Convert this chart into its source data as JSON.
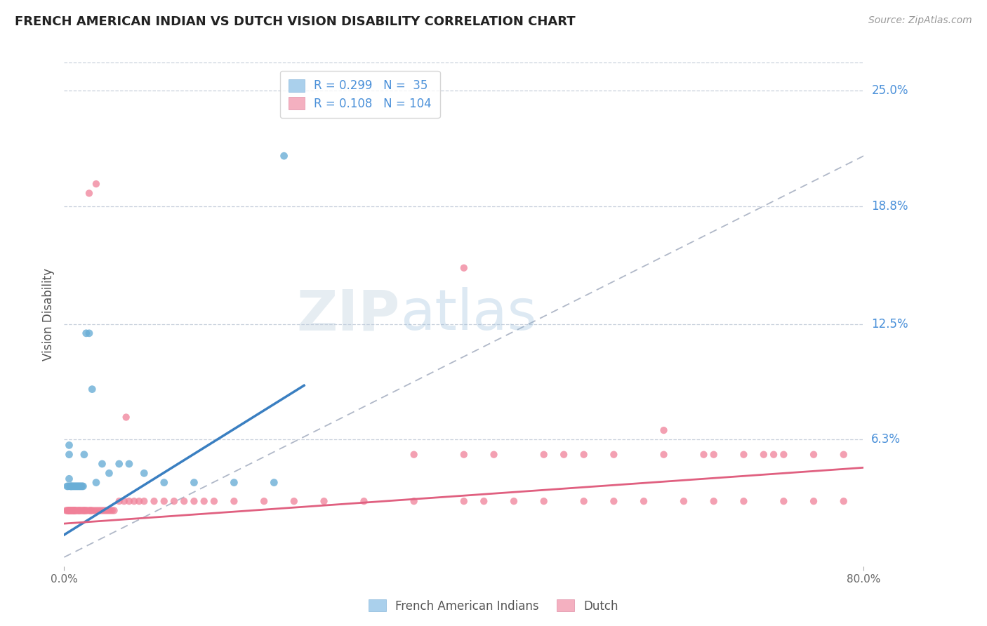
{
  "title": "FRENCH AMERICAN INDIAN VS DUTCH VISION DISABILITY CORRELATION CHART",
  "source": "Source: ZipAtlas.com",
  "ylabel": "Vision Disability",
  "ytick_labels": [
    "25.0%",
    "18.8%",
    "12.5%",
    "6.3%"
  ],
  "ytick_values": [
    0.25,
    0.188,
    0.125,
    0.063
  ],
  "xlim": [
    0.0,
    0.8
  ],
  "ylim": [
    -0.005,
    0.265
  ],
  "blue_scatter_color": "#6aaed6",
  "pink_scatter_color": "#f08098",
  "blue_line_color": "#3a7fc1",
  "pink_line_color": "#e06080",
  "trendline_color": "#b0b8c8",
  "watermark_color": "#ccddf0",
  "background_color": "#ffffff",
  "grid_color": "#c8d0dc",
  "title_color": "#222222",
  "right_label_color": "#4a90d9",
  "blue_line_x0": 0.0,
  "blue_line_y0": 0.012,
  "blue_line_x1": 0.24,
  "blue_line_y1": 0.092,
  "pink_line_x0": 0.0,
  "pink_line_y0": 0.018,
  "pink_line_x1": 0.8,
  "pink_line_y1": 0.048,
  "gray_line_x0": 0.0,
  "gray_line_y0": 0.0,
  "gray_line_x1": 0.8,
  "gray_line_y1": 0.215,
  "blue_x": [
    0.003,
    0.004,
    0.005,
    0.005,
    0.005,
    0.006,
    0.007,
    0.007,
    0.008,
    0.009,
    0.01,
    0.011,
    0.012,
    0.013,
    0.014,
    0.015,
    0.016,
    0.017,
    0.018,
    0.019,
    0.02,
    0.022,
    0.025,
    0.028,
    0.032,
    0.038,
    0.045,
    0.055,
    0.065,
    0.08,
    0.1,
    0.13,
    0.17,
    0.21,
    0.22
  ],
  "blue_y": [
    0.038,
    0.038,
    0.055,
    0.06,
    0.042,
    0.038,
    0.038,
    0.038,
    0.038,
    0.038,
    0.038,
    0.038,
    0.038,
    0.038,
    0.038,
    0.038,
    0.038,
    0.038,
    0.038,
    0.038,
    0.055,
    0.12,
    0.12,
    0.09,
    0.04,
    0.05,
    0.045,
    0.05,
    0.05,
    0.045,
    0.04,
    0.04,
    0.04,
    0.04,
    0.215
  ],
  "pink_x": [
    0.002,
    0.003,
    0.004,
    0.004,
    0.005,
    0.005,
    0.005,
    0.005,
    0.006,
    0.006,
    0.007,
    0.007,
    0.008,
    0.008,
    0.009,
    0.009,
    0.01,
    0.01,
    0.01,
    0.01,
    0.011,
    0.011,
    0.012,
    0.013,
    0.014,
    0.015,
    0.015,
    0.016,
    0.017,
    0.018,
    0.019,
    0.02,
    0.02,
    0.021,
    0.022,
    0.023,
    0.025,
    0.026,
    0.027,
    0.028,
    0.03,
    0.032,
    0.034,
    0.036,
    0.038,
    0.04,
    0.042,
    0.044,
    0.046,
    0.048,
    0.05,
    0.055,
    0.06,
    0.065,
    0.07,
    0.075,
    0.08,
    0.09,
    0.1,
    0.11,
    0.12,
    0.13,
    0.14,
    0.15,
    0.17,
    0.2,
    0.23,
    0.26,
    0.3,
    0.35,
    0.4,
    0.42,
    0.45,
    0.48,
    0.52,
    0.55,
    0.58,
    0.62,
    0.65,
    0.68,
    0.72,
    0.75,
    0.78,
    0.025,
    0.032,
    0.062,
    0.4,
    0.6,
    0.65,
    0.7,
    0.72,
    0.35,
    0.43,
    0.5,
    0.55,
    0.6,
    0.64,
    0.68,
    0.71,
    0.75,
    0.78,
    0.48,
    0.52,
    0.4
  ],
  "pink_y": [
    0.025,
    0.025,
    0.025,
    0.025,
    0.025,
    0.025,
    0.025,
    0.025,
    0.025,
    0.025,
    0.025,
    0.025,
    0.025,
    0.025,
    0.025,
    0.025,
    0.025,
    0.025,
    0.025,
    0.025,
    0.025,
    0.025,
    0.025,
    0.025,
    0.025,
    0.025,
    0.025,
    0.025,
    0.025,
    0.025,
    0.025,
    0.025,
    0.025,
    0.025,
    0.025,
    0.025,
    0.025,
    0.025,
    0.025,
    0.025,
    0.025,
    0.025,
    0.025,
    0.025,
    0.025,
    0.025,
    0.025,
    0.025,
    0.025,
    0.025,
    0.025,
    0.03,
    0.03,
    0.03,
    0.03,
    0.03,
    0.03,
    0.03,
    0.03,
    0.03,
    0.03,
    0.03,
    0.03,
    0.03,
    0.03,
    0.03,
    0.03,
    0.03,
    0.03,
    0.03,
    0.03,
    0.03,
    0.03,
    0.03,
    0.03,
    0.03,
    0.03,
    0.03,
    0.03,
    0.03,
    0.03,
    0.03,
    0.03,
    0.195,
    0.2,
    0.075,
    0.155,
    0.068,
    0.055,
    0.055,
    0.055,
    0.055,
    0.055,
    0.055,
    0.055,
    0.055,
    0.055,
    0.055,
    0.055,
    0.055,
    0.055,
    0.055,
    0.055,
    0.055
  ]
}
